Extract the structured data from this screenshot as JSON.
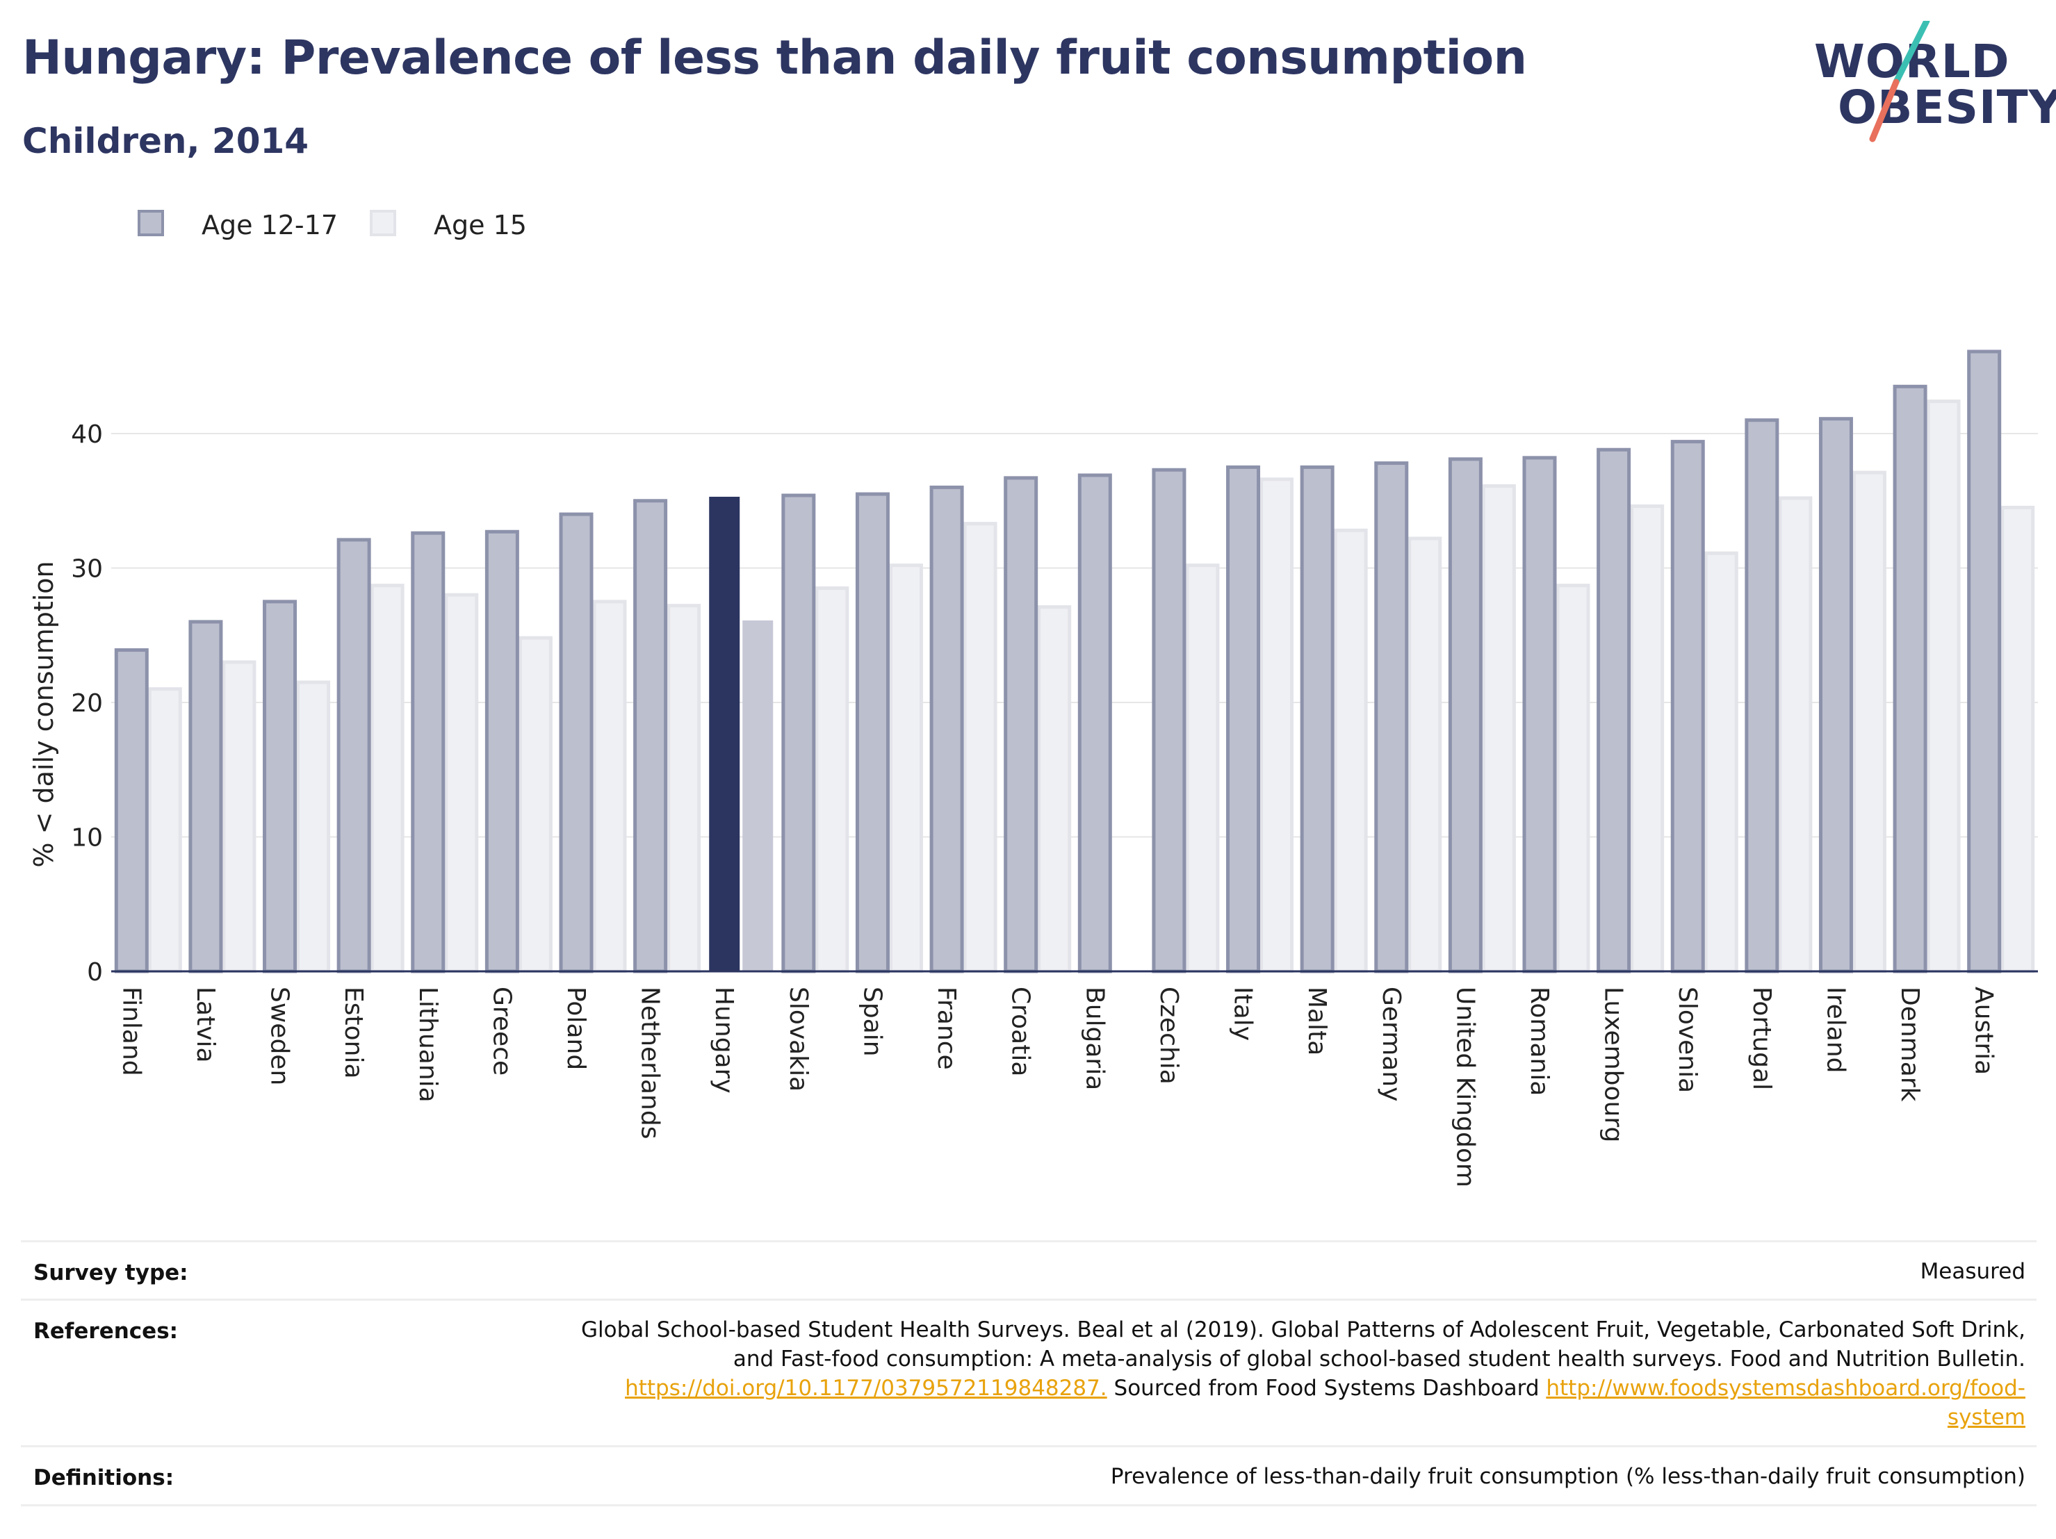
{
  "header": {
    "title": "Hungary: Prevalence of less than daily fruit consumption",
    "subtitle": "Children, 2014"
  },
  "logo": {
    "line1": "WORLD",
    "line2": "OBESITY",
    "colors": {
      "text": "#2d3561",
      "slash_teal": "#3bbfb3",
      "slash_coral": "#e8705c"
    }
  },
  "legend": [
    {
      "label": "Age 12-17",
      "color": "#bcbfce",
      "border": "#8d92ab"
    },
    {
      "label": "Age 15",
      "color": "#eff0f4",
      "border": "#e3e4ea"
    }
  ],
  "chart_data": {
    "type": "bar",
    "title": "Hungary: Prevalence of less than daily fruit consumption",
    "subtitle": "Children, 2014",
    "xlabel": "",
    "ylabel": "% < daily consumption",
    "ylim": [
      0,
      48
    ],
    "yticks": [
      0,
      10,
      20,
      30,
      40
    ],
    "grid": true,
    "legend_position": "top-left",
    "highlight": "Hungary",
    "highlight_colors": {
      "Age 12-17": "#2b3560",
      "Age 15": "#c6c8d6"
    },
    "categories": [
      "Finland",
      "Latvia",
      "Sweden",
      "Estonia",
      "Lithuania",
      "Greece",
      "Poland",
      "Netherlands",
      "Hungary",
      "Slovakia",
      "Spain",
      "France",
      "Croatia",
      "Bulgaria",
      "Czechia",
      "Italy",
      "Malta",
      "Germany",
      "United Kingdom",
      "Romania",
      "Luxembourg",
      "Slovenia",
      "Portugal",
      "Ireland",
      "Denmark",
      "Austria"
    ],
    "series": [
      {
        "name": "Age 12-17",
        "color": "#bcbfce",
        "values": [
          23.9,
          26.0,
          27.5,
          32.1,
          32.6,
          32.7,
          34.0,
          35.0,
          35.3,
          35.4,
          35.5,
          36.0,
          36.7,
          36.9,
          37.3,
          37.5,
          37.5,
          37.8,
          38.1,
          38.2,
          38.8,
          39.4,
          41.0,
          41.1,
          43.5,
          46.1
        ]
      },
      {
        "name": "Age 15",
        "color": "#eff0f4",
        "values": [
          21.0,
          23.0,
          21.5,
          28.7,
          28.0,
          24.8,
          27.5,
          27.2,
          26.1,
          28.5,
          30.2,
          33.3,
          27.1,
          null,
          30.2,
          36.6,
          32.8,
          32.2,
          36.1,
          28.7,
          34.6,
          31.1,
          35.2,
          37.1,
          42.4,
          34.5
        ]
      }
    ]
  },
  "footer": {
    "survey_type_label": "Survey type:",
    "survey_type_value": "Measured",
    "references_label": "References:",
    "references_line1": "Global School-based Student Health Surveys. Beal et al (2019). Global Patterns of Adolescent Fruit, Vegetable, Carbonated Soft Drink,",
    "references_line2": "and Fast-food consumption: A meta-analysis of global school-based student health surveys. Food and Nutrition Bulletin.",
    "references_link1": "https://doi.org/10.1177/0379572119848287.",
    "references_mid": " Sourced from Food Systems Dashboard ",
    "references_link2a": "http://www.foodsystemsdashboard.org/food-",
    "references_link2b": "system",
    "definitions_label": "Definitions:",
    "definitions_value": "Prevalence of less-than-daily fruit consumption (% less-than-daily fruit consumption)"
  }
}
